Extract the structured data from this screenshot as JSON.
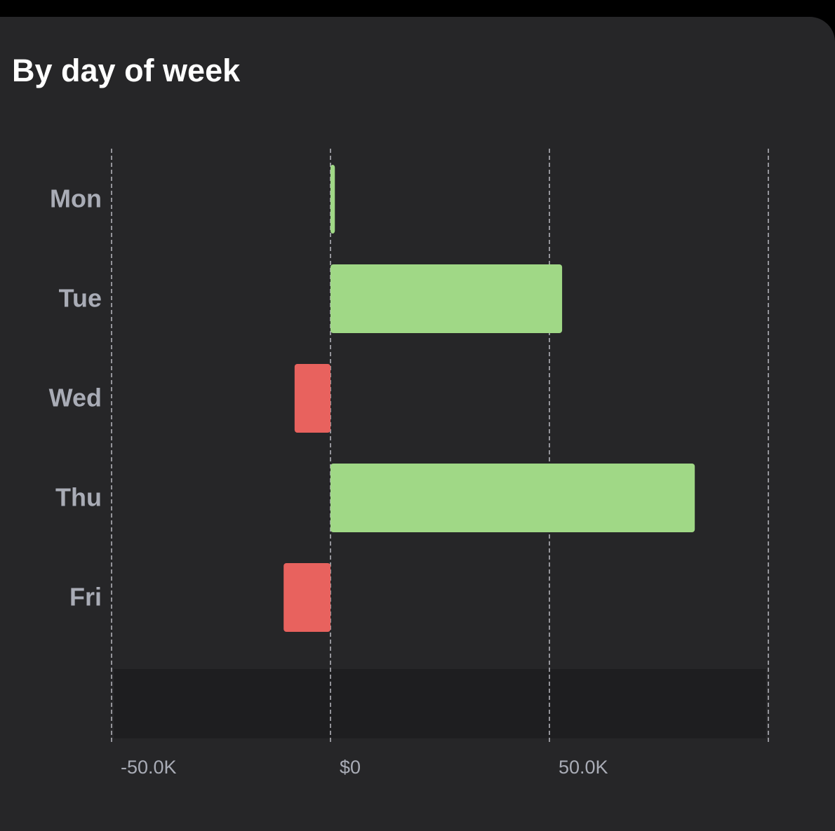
{
  "chart_data": {
    "type": "bar",
    "orientation": "horizontal",
    "title": "By day of week",
    "categories": [
      "Mon",
      "Tue",
      "Wed",
      "Thu",
      "Fri",
      null
    ],
    "values": [
      1000,
      52900,
      -8200,
      83200,
      -10700,
      null
    ],
    "positive_color": "#a0d886",
    "negative_color": "#e8625e",
    "xlim": [
      -50000,
      100000
    ],
    "xticks": [
      {
        "value": -50000,
        "label": "-50.0K"
      },
      {
        "value": 0,
        "label": "$0"
      },
      {
        "value": 50000,
        "label": "50.0K"
      }
    ],
    "grid": true,
    "highlight_index": 5
  }
}
